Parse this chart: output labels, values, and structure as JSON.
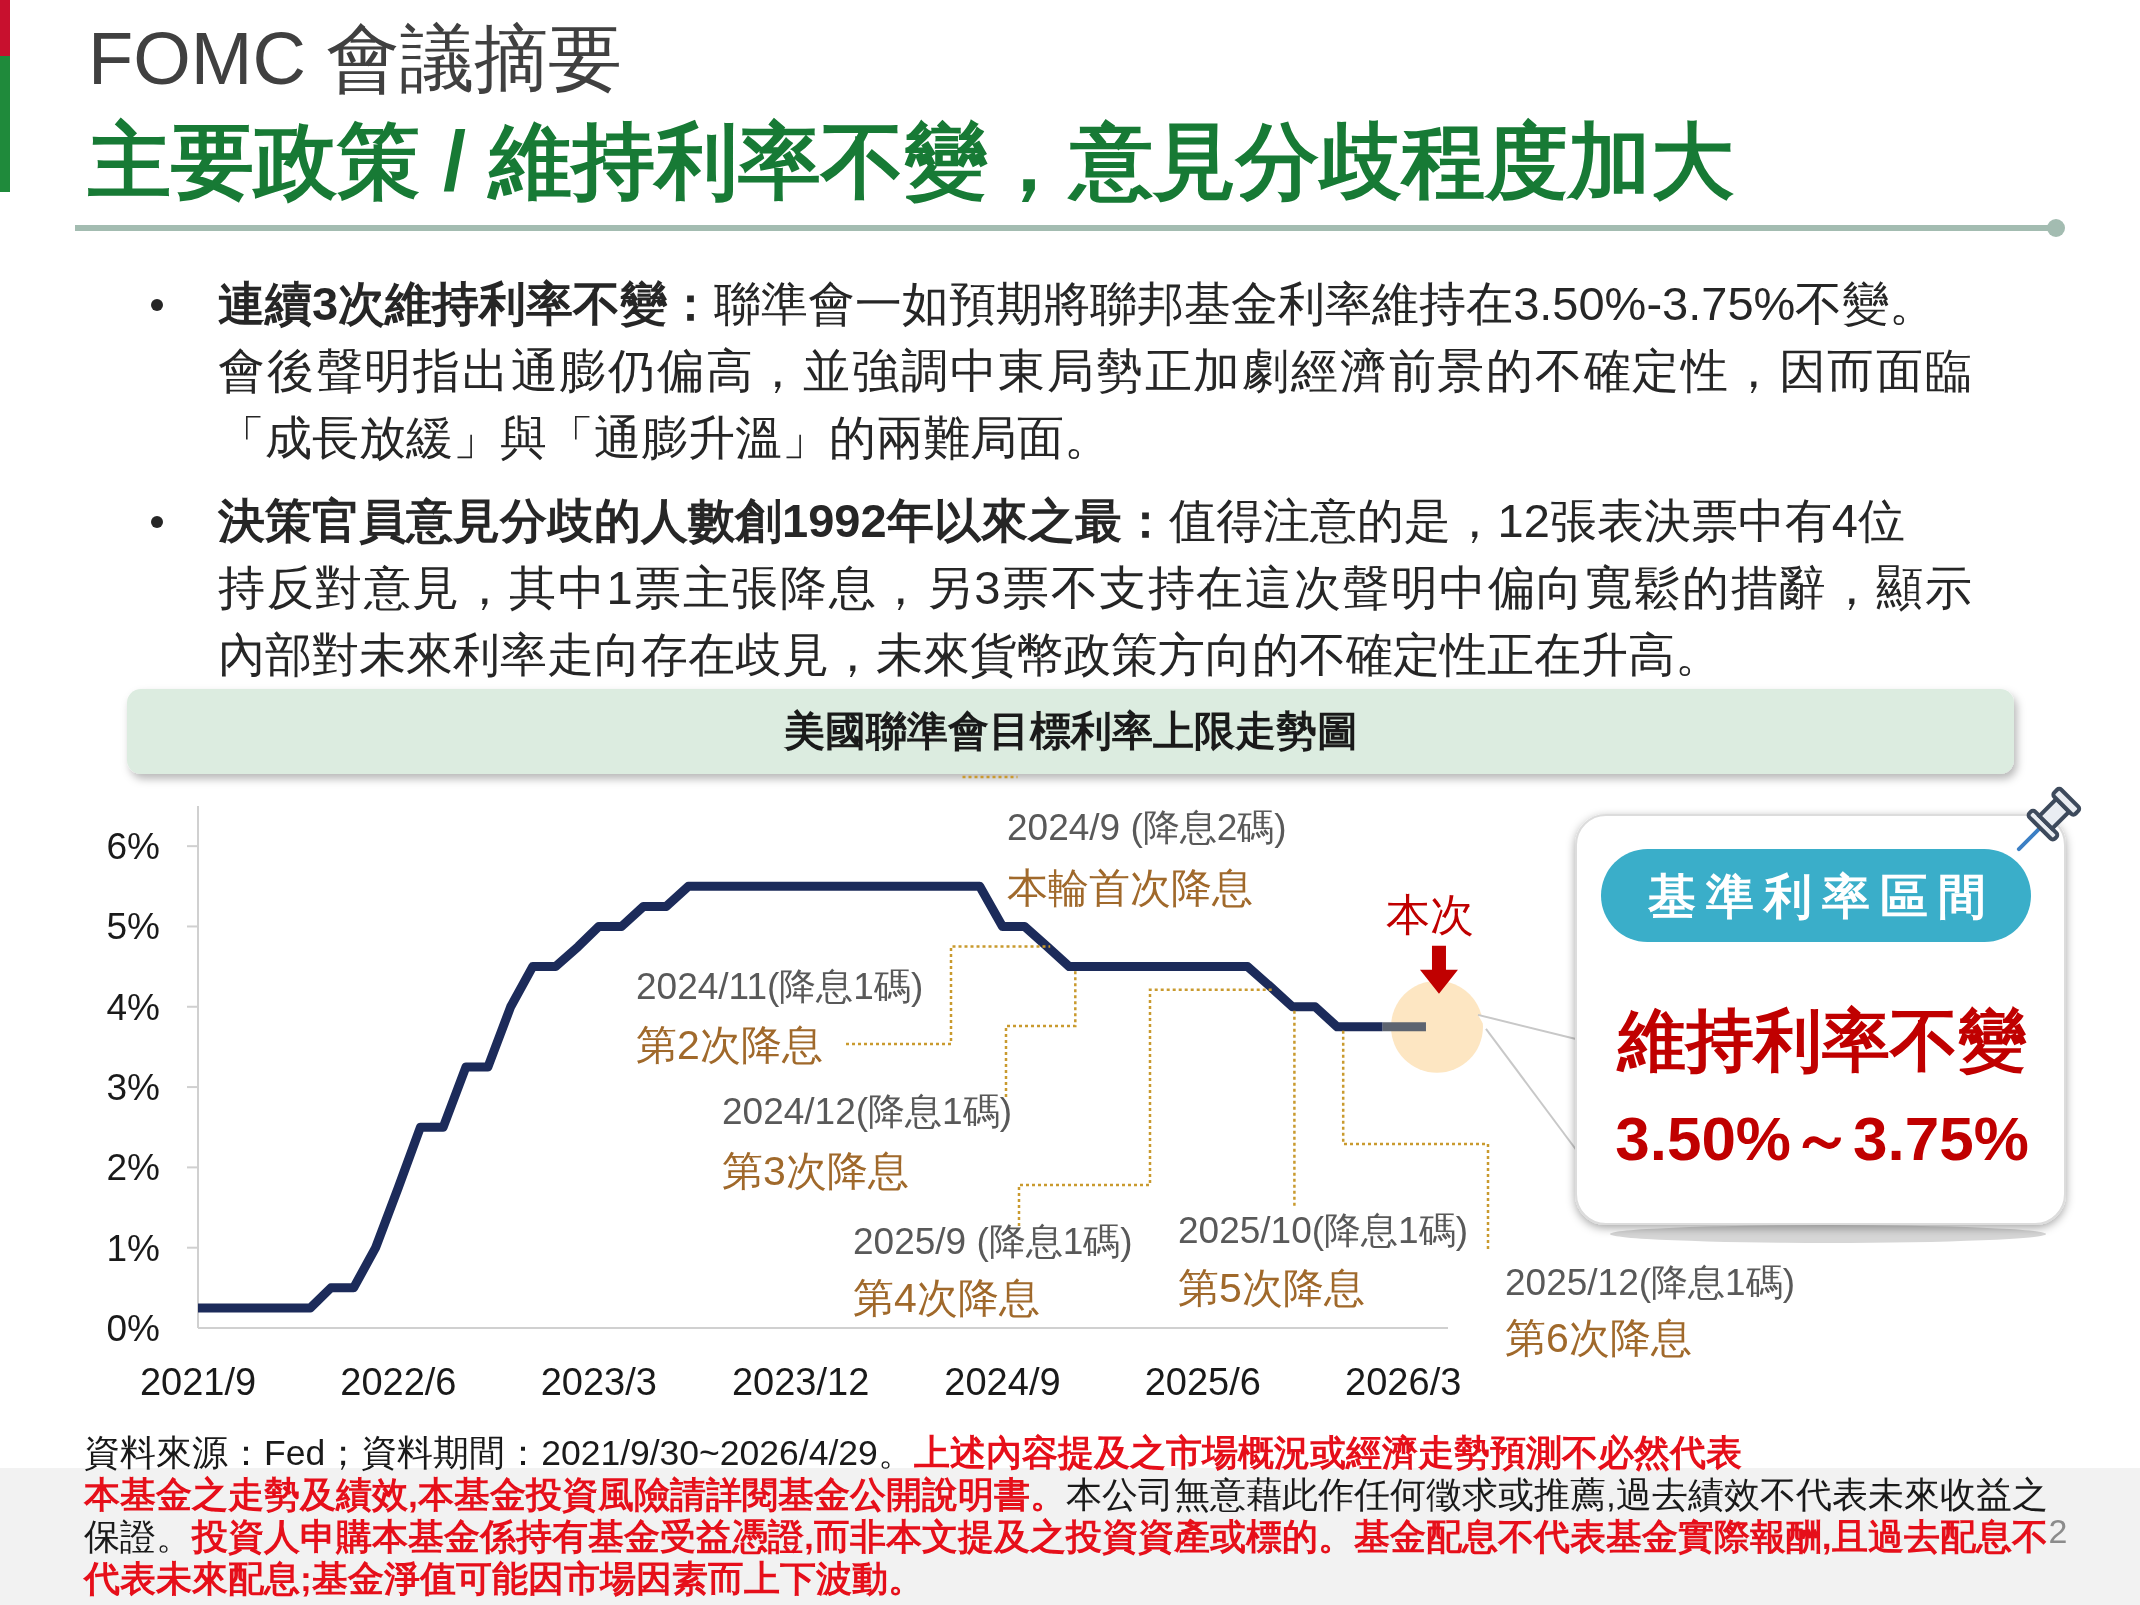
{
  "chart_data": {
    "type": "line",
    "title": "美國聯準會目標利率上限走勢圖",
    "annotations": [
      "FOMC 會議摘要",
      "主要政策 / 維持利率不變，意見分歧程度加大",
      "連續3次維持利率不變：",
      "聯準會一如預期將聯邦基金利率維持在3.50%-3.75%不變。",
      "會後聲明指出通膨仍偏高，並強調中東局勢正加劇經濟前景的不確定性，因而面臨「成長放緩」與「通膨升溫」的兩難局面。",
      "決策官員意見分歧的人數創1992年以來之最：",
      "值得注意的是，12張表決票中有4位",
      "持反對意見，其中1票主張降息，另3票不支持在這次聲明中偏向寬鬆的措辭，顯示內部對未來利率走向存在歧見，未來貨幣政策方向的不確定性正在升高。",
      {
        "text": "2024/9 (降息2碼)\n本輪首次降息",
        "x": "2024-09",
        "y": 5
      },
      {
        "text": "2024/11(降息1碼)\n第2次降息",
        "x": "2024-11",
        "y": 4.75
      },
      {
        "text": "2024/12(降息1碼)\n第3次降息",
        "x": "2024-12",
        "y": 4.5
      },
      {
        "text": "2025/9 (降息1碼)\n第4次降息",
        "x": "2025-09",
        "y": 4.25
      },
      {
        "text": "2025/10(降息1碼)\n第5次降息",
        "x": "2025-10",
        "y": 4
      },
      {
        "text": "2025/12(降息1碼)\n第6次降息",
        "x": "2025-12",
        "y": 3.75
      },
      {
        "text": "本次",
        "x": "2026-04",
        "y": 3.75
      },
      "基準利率區間",
      "維持利率不變",
      "3.50%～3.75%",
      "資料來源：Fed；資料期間：2021/9/30~2026/4/29。",
      "上述內容提及之市場概況或經濟走勢預測不必然代表",
      "本基金之走勢及績效,本基金投資風險請詳閱基金公開說明書。",
      "本公司無意藉此作任何徵求或推薦,過去績效不代表未來收益之",
      "保證。",
      "投資人申購本基金係持有基金受益憑證,而非本文提及之投資資產或標的。基金配息不代表基金實際報酬,且過去配息不",
      "代表未來配息;基金淨值可能因市場因素而上下波動。",
      "2"
    ],
    "x": [
      "2021-09",
      "2021-10",
      "2021-11",
      "2021-12",
      "2022-01",
      "2022-02",
      "2022-03",
      "2022-04",
      "2022-05",
      "2022-06",
      "2022-07",
      "2022-08",
      "2022-09",
      "2022-10",
      "2022-11",
      "2022-12",
      "2023-01",
      "2023-02",
      "2023-03",
      "2023-04",
      "2023-05",
      "2023-06",
      "2023-07",
      "2023-08",
      "2023-09",
      "2023-10",
      "2023-11",
      "2023-12",
      "2024-01",
      "2024-02",
      "2024-03",
      "2024-04",
      "2024-05",
      "2024-06",
      "2024-07",
      "2024-08",
      "2024-09",
      "2024-10",
      "2024-11",
      "2024-12",
      "2025-01",
      "2025-02",
      "2025-03",
      "2025-04",
      "2025-05",
      "2025-06",
      "2025-07",
      "2025-08",
      "2025-09",
      "2025-10",
      "2025-11",
      "2025-12",
      "2026-01",
      "2026-02"
    ],
    "series": [
      {
        "color": "#1c2b5a",
        "values": [
          0.25,
          0.25,
          0.25,
          0.25,
          0.25,
          0.25,
          0.5,
          0.5,
          1,
          1.75,
          2.5,
          2.5,
          3.25,
          3.25,
          4,
          4.5,
          4.5,
          4.75,
          5,
          5,
          5.25,
          5.25,
          5.5,
          5.5,
          5.5,
          5.5,
          5.5,
          5.5,
          5.5,
          5.5,
          5.5,
          5.5,
          5.5,
          5.5,
          5.5,
          5.5,
          5,
          5,
          4.75,
          4.5,
          4.5,
          4.5,
          4.5,
          4.5,
          4.5,
          4.5,
          4.5,
          4.5,
          4.25,
          4,
          4,
          3.75,
          3.75,
          3.75
        ]
      },
      {
        "color": "#5d6470",
        "x": [
          "2026-02",
          "2026-03",
          "2026-04"
        ],
        "values": [
          3.75,
          3.75,
          3.75
        ]
      }
    ],
    "xlim": [
      "2021-09",
      "2026-05"
    ],
    "ylim": [
      0,
      6.5
    ],
    "xticks": [
      {
        "value": "2021-09",
        "label": "2021/9"
      },
      {
        "value": "2022-06",
        "label": "2022/6"
      },
      {
        "value": "2023-03",
        "label": "2023/3"
      },
      {
        "value": "2023-12",
        "label": "2023/12"
      },
      {
        "value": "2024-09",
        "label": "2024/9"
      },
      {
        "value": "2025-06",
        "label": "2025/6"
      },
      {
        "value": "2026-03",
        "label": "2026/3"
      }
    ],
    "yticks": [
      {
        "value": 0,
        "label": "0%"
      },
      {
        "value": 1,
        "label": "1%"
      },
      {
        "value": 2,
        "label": "2%"
      },
      {
        "value": 3,
        "label": "3%"
      },
      {
        "value": 4,
        "label": "4%"
      },
      {
        "value": 5,
        "label": "5%"
      },
      {
        "value": 6,
        "label": "6%"
      }
    ]
  }
}
